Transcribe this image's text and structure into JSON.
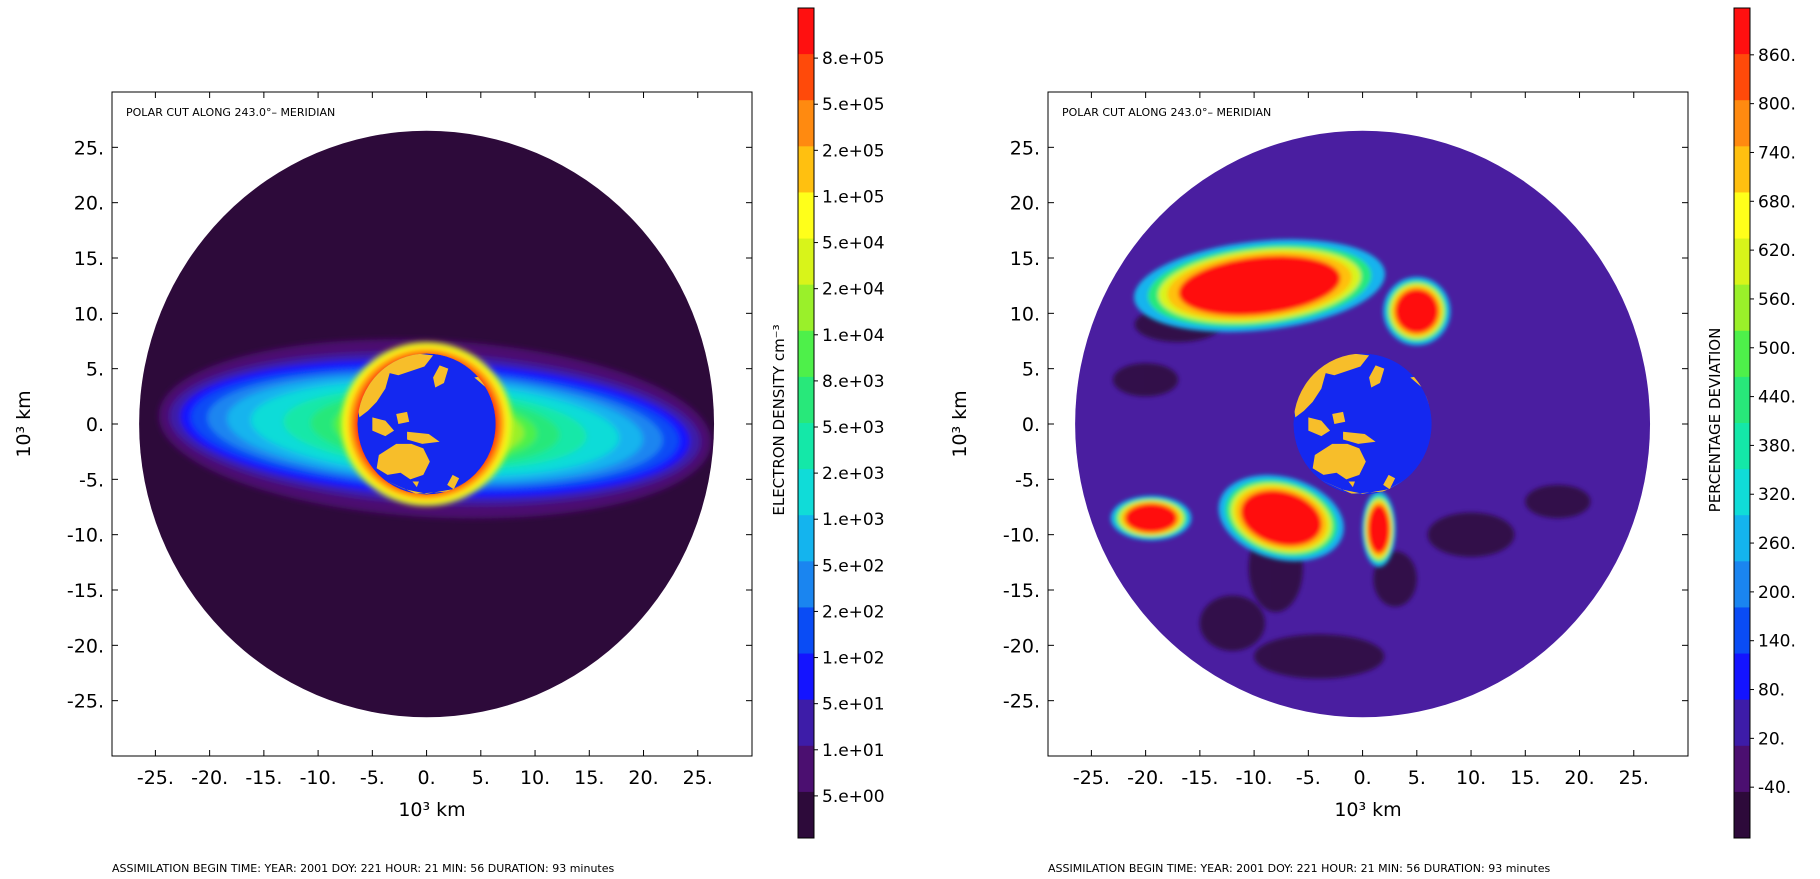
{
  "chart_data": [
    {
      "type": "heatmap",
      "title": "POLAR CUT ALONG 243.0°– MERIDIAN",
      "xlabel": "10³ km",
      "ylabel": "10³ km",
      "xlim": [
        -29,
        30
      ],
      "ylim": [
        -30,
        30
      ],
      "x_ticks": [
        "-25.",
        "-20.",
        "-15.",
        "-10.",
        "-5.",
        "0.",
        "5.",
        "10.",
        "15.",
        "20.",
        "25."
      ],
      "y_ticks": [
        "25.",
        "20.",
        "15.",
        "10.",
        "5.",
        "0.",
        "-5.",
        "-10.",
        "-15.",
        "-20.",
        "-25."
      ],
      "disk_radius": 26.5,
      "earth_radius": 6.37,
      "colorbar_label": "ELECTRON DENSITY  cm⁻³",
      "colorbar_ticks": [
        "8.e+05",
        "5.e+05",
        "2.e+05",
        "1.e+05",
        "5.e+04",
        "2.e+04",
        "1.e+04",
        "8.e+03",
        "5.e+03",
        "2.e+03",
        "1.e+03",
        "5.e+02",
        "2.e+02",
        "1.e+02",
        "5.e+01",
        "1.e+01",
        "5.e+00"
      ],
      "footer": "ASSIMILATION BEGIN TIME: YEAR: 2001 DOY: 221 HOUR: 21 MIN: 56     DURATION: 93 minutes"
    },
    {
      "type": "heatmap",
      "title": "POLAR CUT ALONG 243.0°– MERIDIAN",
      "xlabel": "10³ km",
      "ylabel": "10³ km",
      "xlim": [
        -29,
        30
      ],
      "ylim": [
        -30,
        30
      ],
      "x_ticks": [
        "-25.",
        "-20.",
        "-15.",
        "-10.",
        "-5.",
        "0.",
        "5.",
        "10.",
        "15.",
        "20.",
        "25."
      ],
      "y_ticks": [
        "25.",
        "20.",
        "15.",
        "10.",
        "5.",
        "0.",
        "-5.",
        "-10.",
        "-15.",
        "-20.",
        "-25."
      ],
      "disk_radius": 26.5,
      "earth_radius": 6.37,
      "colorbar_label": "PERCENTAGE DEVIATION",
      "colorbar_ticks": [
        "860.",
        "800.",
        "740.",
        "680.",
        "620.",
        "560.",
        "500.",
        "440.",
        "380.",
        "320.",
        "260.",
        "200.",
        "140.",
        "80.",
        "20.",
        "-40."
      ],
      "footer": "ASSIMILATION BEGIN TIME: YEAR: 2001 DOY: 221 HOUR: 21 MIN: 56     DURATION: 93 minutes"
    }
  ],
  "colors": {
    "scale": [
      "#2d0a3a",
      "#4b0f70",
      "#3d1ca8",
      "#1414ff",
      "#0a4cf5",
      "#1a85f0",
      "#14b4ee",
      "#10dcd8",
      "#14e8a8",
      "#28e87a",
      "#4ef04a",
      "#9af02a",
      "#d8f41a",
      "#ffff1a",
      "#ffc010",
      "#ff8a10",
      "#ff4a0a",
      "#ff1010"
    ],
    "ocean": "#1428f0",
    "land": "#f7be2a",
    "deviation_background": "#4a1ea0"
  }
}
